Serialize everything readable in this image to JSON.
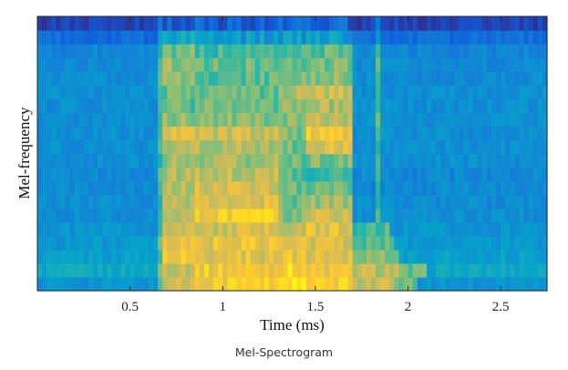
{
  "caption": "Mel-Spectrogram",
  "chart_data": {
    "type": "heatmap",
    "title": "",
    "xlabel": "Time (ms)",
    "ylabel": "Mel-frequency",
    "xlim": [
      0,
      2.75
    ],
    "x_ticks": [
      0.5,
      1,
      1.5,
      2,
      2.5
    ],
    "x_tick_labels": [
      "0.5",
      "1",
      "1.5",
      "2",
      "2.5"
    ],
    "y_ticks": [],
    "grid": false,
    "colormap": "parula",
    "colormap_stops": [
      "#352a87",
      "#0f5cdd",
      "#1481d6",
      "#06a4ca",
      "#2eb7a4",
      "#87bf77",
      "#d1bb59",
      "#fec832",
      "#f9fb0e"
    ],
    "value_range": [
      0,
      1
    ],
    "mel_bands": 20,
    "time_frames": 110,
    "bands_low_to_high": [
      {
        "band": 1,
        "silence": 0.32,
        "speech": [
          [
            0.68,
            0.85,
            0.76
          ],
          [
            0.85,
            1.3,
            0.88
          ],
          [
            1.3,
            1.45,
            0.96
          ],
          [
            1.45,
            1.7,
            0.86
          ],
          [
            1.7,
            1.92,
            0.74
          ],
          [
            1.92,
            2.05,
            0.55
          ]
        ]
      },
      {
        "band": 2,
        "silence": 0.4,
        "speech": [
          [
            0.68,
            0.85,
            0.76
          ],
          [
            0.85,
            1.3,
            0.85
          ],
          [
            1.3,
            1.45,
            0.9
          ],
          [
            1.45,
            1.7,
            0.82
          ],
          [
            1.7,
            1.95,
            0.72
          ],
          [
            1.95,
            2.1,
            0.55
          ]
        ]
      },
      {
        "band": 3,
        "silence": 0.36,
        "speech": [
          [
            0.68,
            0.85,
            0.83
          ],
          [
            0.85,
            1.3,
            0.8
          ],
          [
            1.3,
            1.45,
            0.82
          ],
          [
            1.45,
            1.7,
            0.8
          ],
          [
            1.7,
            1.95,
            0.65
          ]
        ]
      },
      {
        "band": 4,
        "silence": 0.33,
        "speech": [
          [
            0.68,
            0.85,
            0.8
          ],
          [
            0.85,
            1.3,
            0.82
          ],
          [
            1.3,
            1.45,
            0.78
          ],
          [
            1.45,
            1.7,
            0.78
          ],
          [
            1.7,
            1.92,
            0.58
          ]
        ]
      },
      {
        "band": 5,
        "silence": 0.32,
        "speech": [
          [
            0.68,
            0.85,
            0.72
          ],
          [
            0.85,
            1.3,
            0.75
          ],
          [
            1.3,
            1.45,
            0.72
          ],
          [
            1.45,
            1.7,
            0.8
          ],
          [
            1.7,
            1.9,
            0.52
          ]
        ]
      },
      {
        "band": 6,
        "silence": 0.3,
        "speech": [
          [
            0.68,
            0.85,
            0.68
          ],
          [
            0.85,
            1.3,
            0.86
          ],
          [
            1.3,
            1.45,
            0.62
          ],
          [
            1.45,
            1.7,
            0.74
          ]
        ]
      },
      {
        "band": 7,
        "silence": 0.29,
        "speech": [
          [
            0.68,
            0.85,
            0.7
          ],
          [
            0.85,
            1.3,
            0.8
          ],
          [
            1.3,
            1.45,
            0.6
          ],
          [
            1.45,
            1.7,
            0.66
          ]
        ]
      },
      {
        "band": 8,
        "silence": 0.28,
        "speech": [
          [
            0.68,
            0.85,
            0.72
          ],
          [
            0.85,
            1.3,
            0.76
          ],
          [
            1.3,
            1.45,
            0.58
          ],
          [
            1.45,
            1.7,
            0.58
          ]
        ]
      },
      {
        "band": 9,
        "silence": 0.28,
        "speech": [
          [
            0.68,
            0.85,
            0.7
          ],
          [
            0.85,
            1.3,
            0.72
          ],
          [
            1.3,
            1.45,
            0.56
          ],
          [
            1.45,
            1.7,
            0.52
          ]
        ]
      },
      {
        "band": 10,
        "silence": 0.3,
        "speech": [
          [
            0.68,
            0.85,
            0.66
          ],
          [
            0.85,
            1.3,
            0.66
          ],
          [
            1.3,
            1.45,
            0.58
          ],
          [
            1.45,
            1.7,
            0.6
          ]
        ]
      },
      {
        "band": 11,
        "silence": 0.3,
        "speech": [
          [
            0.68,
            0.85,
            0.66
          ],
          [
            0.85,
            1.3,
            0.7
          ],
          [
            1.3,
            1.45,
            0.6
          ],
          [
            1.45,
            1.7,
            0.78
          ]
        ]
      },
      {
        "band": 12,
        "silence": 0.3,
        "speech": [
          [
            0.68,
            0.85,
            0.76
          ],
          [
            0.85,
            1.3,
            0.74
          ],
          [
            1.3,
            1.45,
            0.6
          ],
          [
            1.45,
            1.7,
            0.84
          ]
        ]
      },
      {
        "band": 13,
        "silence": 0.3,
        "speech": [
          [
            0.68,
            0.85,
            0.64
          ],
          [
            0.85,
            1.3,
            0.62
          ],
          [
            1.3,
            1.45,
            0.62
          ],
          [
            1.45,
            1.7,
            0.7
          ]
        ]
      },
      {
        "band": 14,
        "silence": 0.3,
        "speech": [
          [
            0.68,
            0.85,
            0.56
          ],
          [
            0.85,
            1.3,
            0.58
          ],
          [
            1.3,
            1.45,
            0.64
          ],
          [
            1.45,
            1.7,
            0.68
          ]
        ]
      },
      {
        "band": 15,
        "silence": 0.3,
        "speech": [
          [
            0.68,
            0.85,
            0.58
          ],
          [
            0.85,
            1.3,
            0.56
          ],
          [
            1.3,
            1.45,
            0.68
          ],
          [
            1.45,
            1.7,
            0.74
          ]
        ]
      },
      {
        "band": 16,
        "silence": 0.29,
        "speech": [
          [
            0.68,
            0.85,
            0.62
          ],
          [
            0.85,
            1.3,
            0.56
          ],
          [
            1.3,
            1.45,
            0.64
          ],
          [
            1.45,
            1.7,
            0.64
          ]
        ]
      },
      {
        "band": 17,
        "silence": 0.28,
        "speech": [
          [
            0.68,
            0.85,
            0.66
          ],
          [
            0.85,
            1.3,
            0.58
          ],
          [
            1.3,
            1.45,
            0.58
          ],
          [
            1.45,
            1.7,
            0.6
          ]
        ]
      },
      {
        "band": 18,
        "silence": 0.27,
        "speech": [
          [
            0.68,
            0.85,
            0.6
          ],
          [
            0.85,
            1.3,
            0.52
          ],
          [
            1.3,
            1.45,
            0.52
          ],
          [
            1.45,
            1.7,
            0.56
          ]
        ]
      },
      {
        "band": 19,
        "silence": 0.18,
        "speech": [
          [
            0.68,
            0.85,
            0.38
          ],
          [
            0.85,
            1.3,
            0.34
          ],
          [
            1.3,
            1.45,
            0.34
          ],
          [
            1.45,
            1.7,
            0.36
          ]
        ]
      },
      {
        "band": 20,
        "silence": 0.06,
        "speech": [
          [
            0.68,
            0.85,
            0.16
          ],
          [
            0.85,
            1.3,
            0.14
          ],
          [
            1.3,
            1.45,
            0.16
          ],
          [
            1.45,
            1.7,
            0.15
          ]
        ]
      }
    ],
    "onset_streaks": [
      0.67,
      1.83
    ]
  }
}
